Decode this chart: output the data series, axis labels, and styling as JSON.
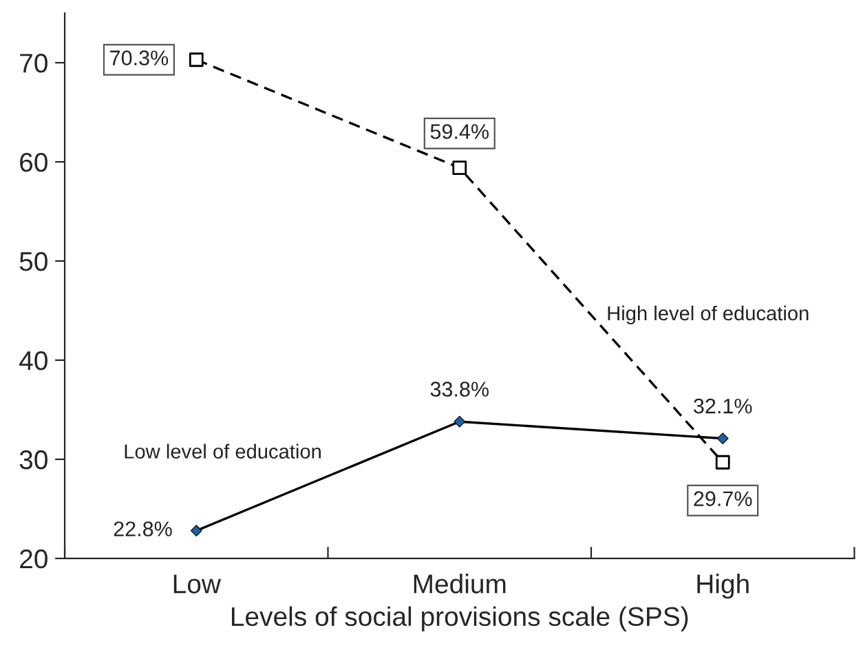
{
  "chart_data": {
    "type": "line",
    "xlabel": "Levels of social provisions scale (SPS)",
    "categories": [
      "Low",
      "Medium",
      "High"
    ],
    "ylim": [
      20,
      75
    ],
    "yticks": [
      20,
      30,
      40,
      50,
      60,
      70
    ],
    "grid": false,
    "legend": false,
    "series": [
      {
        "name": "Low level of education",
        "color": "#000000",
        "marker": "diamond",
        "line_style": "solid",
        "values": [
          22.8,
          33.8,
          32.1
        ],
        "value_labels": [
          "22.8%",
          "33.8%",
          "32.1%"
        ]
      },
      {
        "name": "High level of education",
        "color": "#000000",
        "marker": "square",
        "line_style": "dashed",
        "values": [
          70.3,
          59.4,
          29.7
        ],
        "value_labels": [
          "70.3%",
          "59.4%",
          "29.7%"
        ]
      }
    ]
  }
}
